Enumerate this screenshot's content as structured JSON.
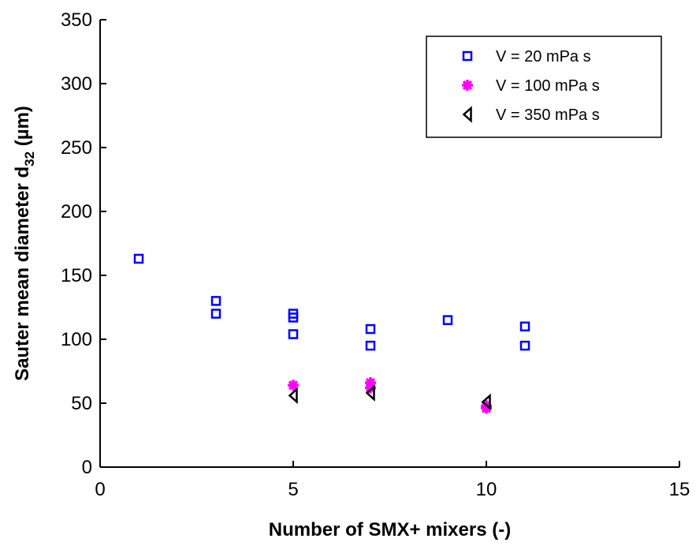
{
  "chart_data": {
    "type": "scatter",
    "title": "",
    "xlabel": "Number of SMX+ mixers (-)",
    "ylabel_main": "Sauter mean diameter d",
    "ylabel_sub": "32",
    "ylabel_unit": " (µm)",
    "xlim": [
      0,
      15
    ],
    "ylim": [
      0,
      350
    ],
    "x_ticks": [
      0,
      5,
      10,
      15
    ],
    "x_tick_labels": [
      "0",
      "5",
      "10",
      "15"
    ],
    "y_ticks": [
      0,
      50,
      100,
      150,
      200,
      250,
      300,
      350
    ],
    "y_tick_labels": [
      "0",
      "50",
      "100",
      "150",
      "200",
      "250",
      "300",
      "350"
    ],
    "grid": false,
    "legend_position": "top-right",
    "series": [
      {
        "name": "V = 20 mPa s",
        "marker": "square",
        "color": "#0000ff",
        "x": [
          1,
          3,
          3,
          5,
          5,
          5,
          7,
          7,
          9,
          11,
          11
        ],
        "y": [
          163,
          130,
          120,
          120,
          117,
          104,
          108,
          95,
          115,
          110,
          95
        ]
      },
      {
        "name": "V = 100 mPa s",
        "marker": "asterisk",
        "color": "#ff00ff",
        "x": [
          5,
          7,
          7,
          10,
          10
        ],
        "y": [
          64,
          66,
          62,
          48,
          46
        ]
      },
      {
        "name": "V = 350 mPa s",
        "marker": "triangle-left",
        "color": "#000000",
        "x": [
          5,
          7,
          10
        ],
        "y": [
          56,
          58,
          51
        ]
      }
    ]
  }
}
